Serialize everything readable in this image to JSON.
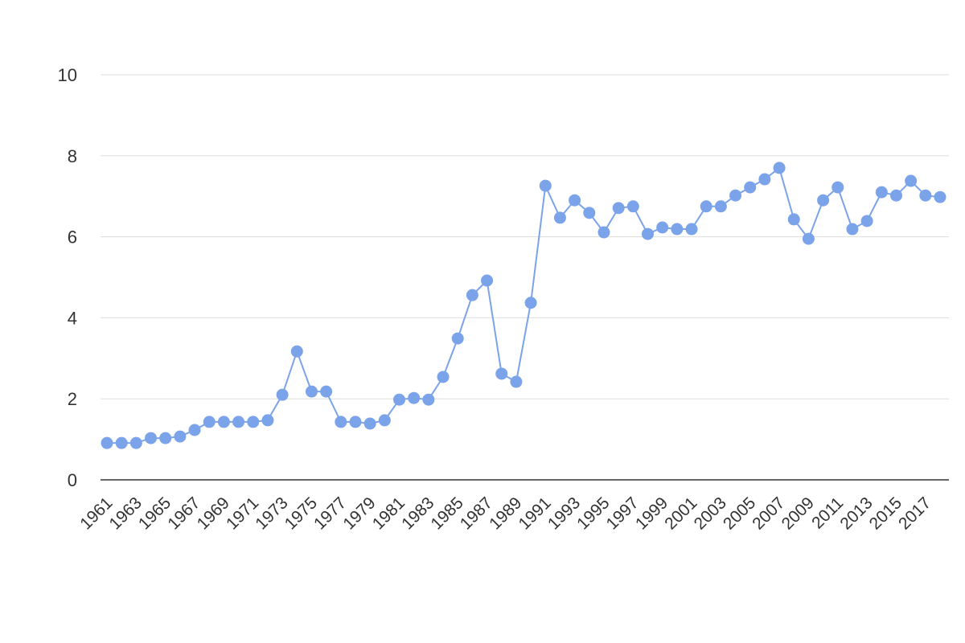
{
  "chart_data": {
    "type": "line",
    "categories": [
      "1961",
      null,
      "1963",
      null,
      "1965",
      null,
      "1967",
      null,
      "1969",
      null,
      "1971",
      null,
      "1973",
      null,
      "1975",
      null,
      "1977",
      null,
      "1979",
      null,
      "1981",
      null,
      "1983",
      null,
      "1985",
      null,
      "1987",
      null,
      "1989",
      null,
      "1991",
      null,
      "1993",
      null,
      "1995",
      null,
      "1997",
      null,
      "1999",
      null,
      "2001",
      null,
      "2003",
      null,
      "2005",
      null,
      "2007",
      null,
      "2009",
      null,
      "2011",
      null,
      "2013",
      null,
      "2015",
      null,
      "2017",
      null
    ],
    "values": [
      0.91,
      0.91,
      0.91,
      1.03,
      1.03,
      1.07,
      1.23,
      1.43,
      1.43,
      1.43,
      1.43,
      1.47,
      2.1,
      3.17,
      2.18,
      2.18,
      1.43,
      1.43,
      1.39,
      1.47,
      1.98,
      2.02,
      1.98,
      2.54,
      3.49,
      4.56,
      4.92,
      2.62,
      2.42,
      4.37,
      7.26,
      6.47,
      6.9,
      6.59,
      6.11,
      6.71,
      6.75,
      6.07,
      6.23,
      6.19,
      6.19,
      6.75,
      6.75,
      7.02,
      7.22,
      7.42,
      7.7,
      6.43,
      5.95,
      6.9,
      7.22,
      6.19,
      6.39,
      7.1,
      7.02,
      7.38,
      7.02,
      6.98
    ],
    "color": "#7ba3ea",
    "ylim": [
      0,
      10
    ],
    "yticks": [
      0,
      2,
      4,
      6,
      8,
      10
    ],
    "grid": true
  }
}
